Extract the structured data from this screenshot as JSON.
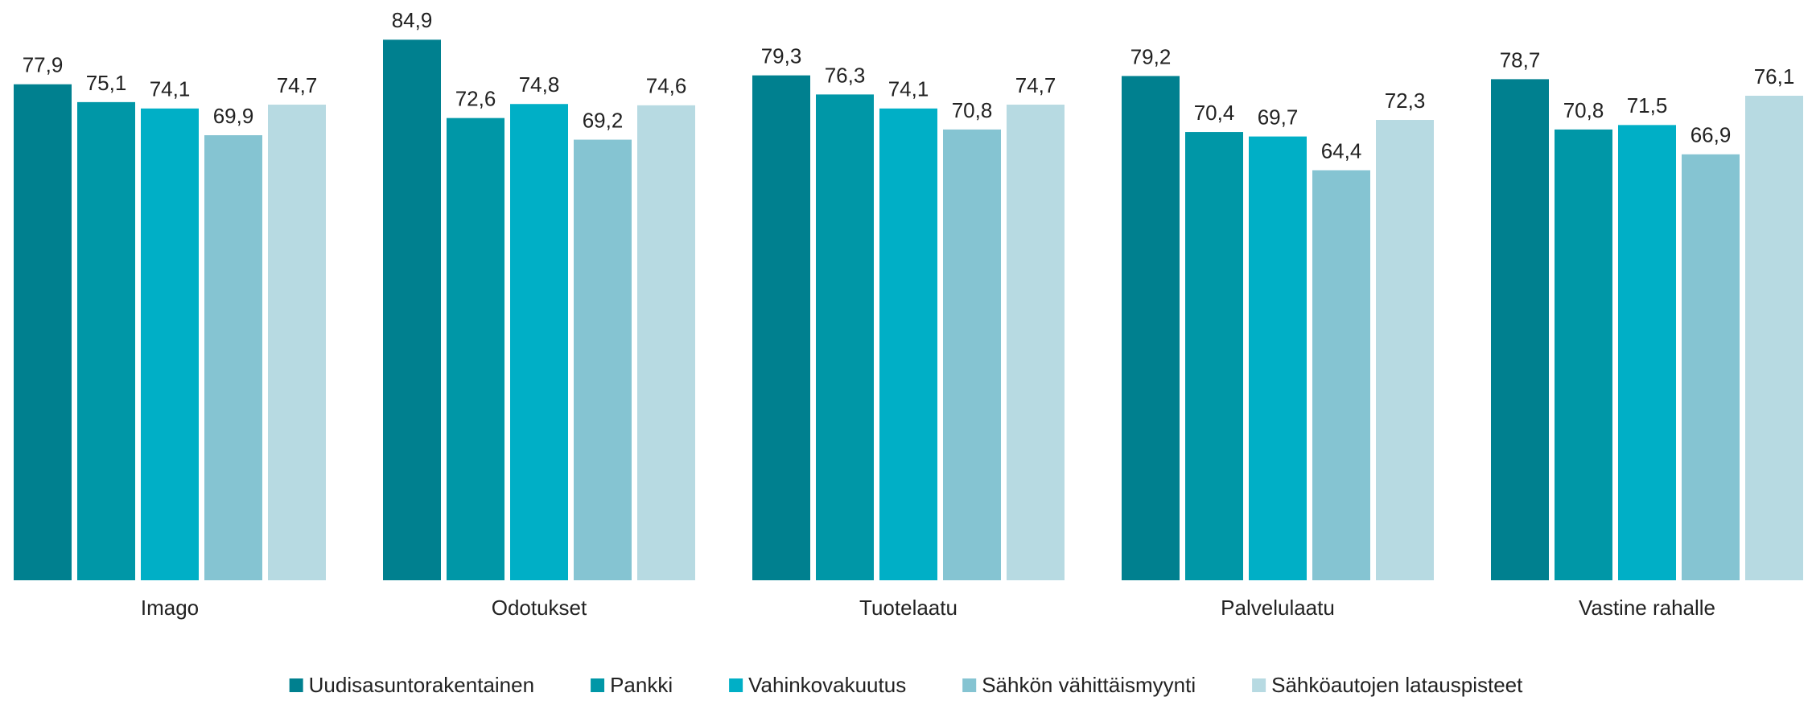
{
  "chart_data": {
    "type": "bar",
    "categories": [
      "Imago",
      "Odotukset",
      "Tuotelaatu",
      "Palvelulaatu",
      "Vastine rahalle"
    ],
    "series": [
      {
        "name": "Uudisasuntorakentainen",
        "color": "#00808f",
        "values": [
          77.9,
          84.9,
          79.3,
          79.2,
          78.7
        ],
        "value_labels": [
          "77,9",
          "84,9",
          "79,3",
          "79,2",
          "78,7"
        ]
      },
      {
        "name": "Pankki",
        "color": "#0097a7",
        "values": [
          75.1,
          72.6,
          76.3,
          70.4,
          70.8
        ],
        "value_labels": [
          "75,1",
          "72,6",
          "76,3",
          "70,4",
          "70,8"
        ]
      },
      {
        "name": "Vahinkovakuutus",
        "color": "#00afc6",
        "values": [
          74.1,
          74.8,
          74.1,
          69.7,
          71.5
        ],
        "value_labels": [
          "74,1",
          "74,8",
          "74,1",
          "69,7",
          "71,5"
        ]
      },
      {
        "name": "Sähkön vähittäismyynti",
        "color": "#85c4d2",
        "values": [
          69.9,
          69.2,
          70.8,
          64.4,
          66.9
        ],
        "value_labels": [
          "69,9",
          "69,2",
          "70,8",
          "64,4",
          "66,9"
        ]
      },
      {
        "name": "Sähköautojen latauspisteet",
        "color": "#b7dae2",
        "values": [
          74.7,
          74.6,
          74.7,
          72.3,
          76.1
        ],
        "value_labels": [
          "74,7",
          "74,6",
          "74,7",
          "72,3",
          "76,1"
        ]
      }
    ],
    "ylim": [
      0,
      90
    ],
    "grid": false,
    "legend": "bottom"
  }
}
